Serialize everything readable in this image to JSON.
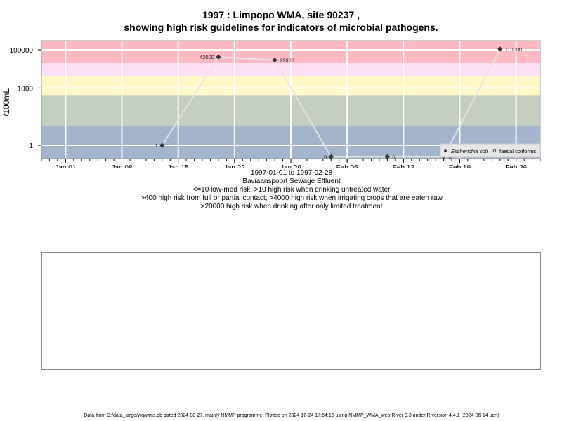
{
  "header": {
    "title_line1": "1997 : Limpopo WMA, site 90237 ,",
    "title_line2": "showing high risk guidelines for indicators of microbial pathogens."
  },
  "chart_data": {
    "type": "line",
    "y_scale": "log10",
    "ylabel": "/100mL",
    "yticks": [
      1,
      1000,
      100000
    ],
    "ytick_labels": [
      "1",
      "1000",
      "100000"
    ],
    "ylim": [
      0.2,
      300000
    ],
    "xlim": [
      "1996-12-29",
      "1997-03-01"
    ],
    "xticks": [
      "1997-01-01",
      "1997-01-08",
      "1997-01-15",
      "1997-01-22",
      "1997-01-29",
      "1997-02-05",
      "1997-02-12",
      "1997-02-19",
      "1997-02-26"
    ],
    "xtick_labels": [
      "Jan 01",
      "Jan 08",
      "Jan 15",
      "Jan 22",
      "Jan 29",
      "Feb 05",
      "Feb 12",
      "Feb 19",
      "Feb 26"
    ],
    "grid": true,
    "background_bands": [
      {
        "from": 0.2,
        "to": 10,
        "color": "#a3b5cc"
      },
      {
        "from": 10,
        "to": 400,
        "color": "#c3cdc0"
      },
      {
        "from": 400,
        "to": 4000,
        "color": "#fff7c4"
      },
      {
        "from": 4000,
        "to": 20000,
        "color": "#fde0f3"
      },
      {
        "from": 20000,
        "to": 300000,
        "color": "#ffb9c5"
      }
    ],
    "series": [
      {
        "name": "Escherichia coli",
        "marker": "filled-diamond",
        "color": "#333333",
        "line_color": "#e4e4e4",
        "x": [
          "1997-01-13",
          "1997-01-20",
          "1997-01-27",
          "1997-02-03",
          "1997-02-10",
          "1997-02-17",
          "1997-02-24"
        ],
        "y": [
          1,
          42000,
          29000,
          0,
          0,
          0,
          110000
        ],
        "labels": [
          "1",
          "42000",
          "29000",
          "0",
          "0",
          "0",
          "110000"
        ]
      }
    ],
    "legend": {
      "position": "bottom-right",
      "entries": [
        {
          "label": "Escherichia coli",
          "marker": "filled"
        },
        {
          "label": "faecal coliforms",
          "marker": "open"
        }
      ]
    }
  },
  "captions": [
    "1997-01-01 to 1997-02-28",
    "Baviaanspoort Sewage Effluent",
    "<=10 low-med risk; >10 high risk when drinking untreated water",
    ">400 high risk from full or partial contact; >4000 high risk when irrigating crops that are eaten raw",
    ">20000 high risk when drinking after only limited treatment"
  ],
  "footer": "Data from D:/data_large/wq/wms.db dated 2024-08-27, mainly NMMP programme. Plotted on 2024-10-24 17:54:15 using NMMP_WMA_web.R ver 9.3 under R version 4.4.1 (2024-06-14 ucrt)"
}
